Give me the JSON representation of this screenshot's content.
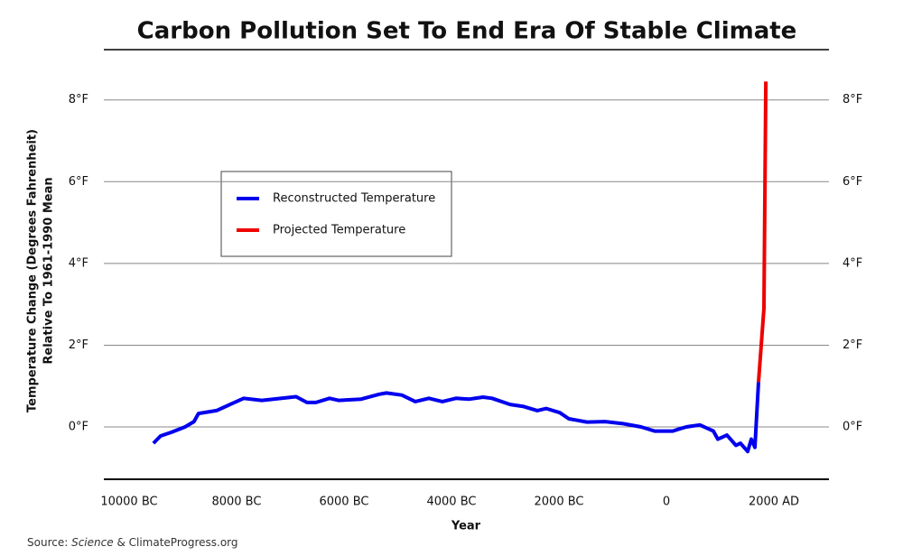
{
  "chart_data": {
    "type": "line",
    "title": "Carbon Pollution Set To End Era Of Stable Climate",
    "x_label": "Year",
    "y_label": [
      "Temperature Change (Degrees Fahrenheit)",
      "Relative To 1961-1990 Mean"
    ],
    "source": {
      "prefix": "Source:",
      "italic": "Science",
      "suffix": "& ClimateProgress.org"
    },
    "xlim": [
      -10470,
      3025
    ],
    "ylim": [
      -1.28,
      9.23
    ],
    "xticks": [
      {
        "value": -10000,
        "label": "10000 BC"
      },
      {
        "value": -8000,
        "label": "8000 BC"
      },
      {
        "value": -6000,
        "label": "6000 BC"
      },
      {
        "value": -4000,
        "label": "4000 BC"
      },
      {
        "value": -2000,
        "label": "2000 BC"
      },
      0,
      {
        "value": 2000,
        "label": "2000 AD"
      }
    ],
    "yticks": [
      {
        "value": 0,
        "label": "0°F"
      },
      {
        "value": 2,
        "label": "2°F"
      },
      {
        "value": 4,
        "label": "4°F"
      },
      {
        "value": 6,
        "label": "6°F"
      },
      {
        "value": 8,
        "label": "8°F"
      }
    ],
    "grid": true,
    "legend": "upper left",
    "series": [
      {
        "name": "Reconstructed Temperature",
        "color": "#0000ee",
        "x": [
          -9548,
          -9414,
          -9212,
          -8960,
          -8792,
          -8708,
          -8372,
          -8120,
          -7867,
          -7531,
          -7027,
          -6892,
          -6691,
          -6523,
          -6271,
          -6103,
          -5682,
          -5346,
          -5212,
          -4926,
          -4674,
          -4422,
          -4170,
          -3917,
          -3665,
          -3413,
          -3245,
          -2909,
          -2656,
          -2404,
          -2236,
          -1984,
          -1815,
          -1479,
          -1143,
          -807,
          -471,
          -219,
          118,
          235,
          370,
          622,
          874,
          958,
          1126,
          1294,
          1378,
          1513,
          1580,
          1647,
          1714
        ],
        "values": [
          -0.4,
          -0.22,
          -0.13,
          0.0,
          0.13,
          0.33,
          0.4,
          0.55,
          0.7,
          0.65,
          0.72,
          0.74,
          0.6,
          0.6,
          0.7,
          0.65,
          0.68,
          0.8,
          0.83,
          0.78,
          0.62,
          0.7,
          0.62,
          0.7,
          0.68,
          0.73,
          0.7,
          0.55,
          0.5,
          0.4,
          0.45,
          0.35,
          0.2,
          0.12,
          0.13,
          0.08,
          0.0,
          -0.1,
          -0.1,
          -0.05,
          0.0,
          0.05,
          -0.1,
          -0.3,
          -0.2,
          -0.45,
          -0.4,
          -0.6,
          -0.3,
          -0.5,
          1.1
        ]
      },
      {
        "name": "Projected Temperature",
        "color": "#ee0000",
        "x": [
          1714,
          1815,
          1850
        ],
        "values": [
          1.1,
          2.9,
          8.45
        ]
      }
    ]
  }
}
